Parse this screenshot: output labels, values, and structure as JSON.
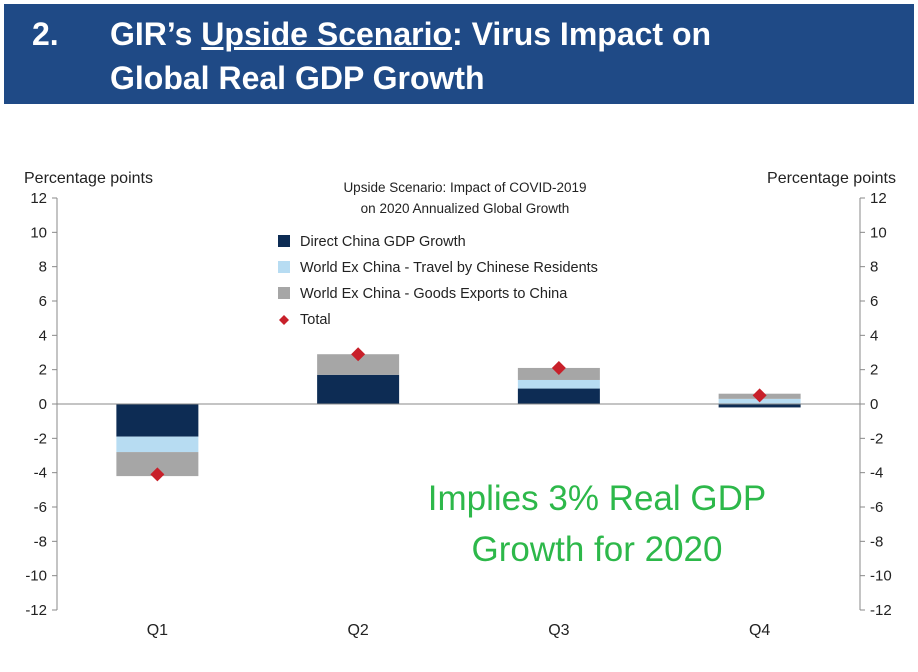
{
  "header": {
    "number": "2.",
    "title_prefix": "GIR’s ",
    "title_underlined": "Upside Scenario",
    "title_suffix": ": Virus Impact on",
    "title_line2": "Global Real GDP Growth"
  },
  "chart_data": {
    "type": "bar",
    "stacked": true,
    "title_line1": "Upside Scenario: Impact of COVID-2019",
    "title_line2": "on 2020 Annualized Global Growth",
    "ylabel_left": "Percentage  points",
    "ylabel_right": "Percentage  points",
    "ylim": [
      -12,
      12
    ],
    "yticks": [
      12,
      10,
      8,
      6,
      4,
      2,
      0,
      -2,
      -4,
      -6,
      -8,
      -10,
      -12
    ],
    "categories": [
      "Q1",
      "Q2",
      "Q3",
      "Q4"
    ],
    "series": [
      {
        "name": "Direct China GDP Growth",
        "color": "#0d2c54",
        "values": [
          -1.9,
          1.7,
          0.9,
          -0.2
        ]
      },
      {
        "name": "World Ex China - Travel by Chinese Residents",
        "color": "#b7dcf2",
        "values": [
          -0.9,
          0.0,
          0.5,
          0.3
        ]
      },
      {
        "name": "World Ex China - Goods Exports to China",
        "color": "#a6a6a6",
        "values": [
          -1.4,
          1.2,
          0.7,
          0.3
        ]
      }
    ],
    "total": {
      "name": "Total",
      "color": "#c8202a",
      "values": [
        -4.1,
        2.9,
        2.1,
        0.5
      ]
    },
    "annotation_line1": "Implies 3% Real GDP",
    "annotation_line2": "Growth for 2020",
    "annotation_color": "#2db84a"
  }
}
